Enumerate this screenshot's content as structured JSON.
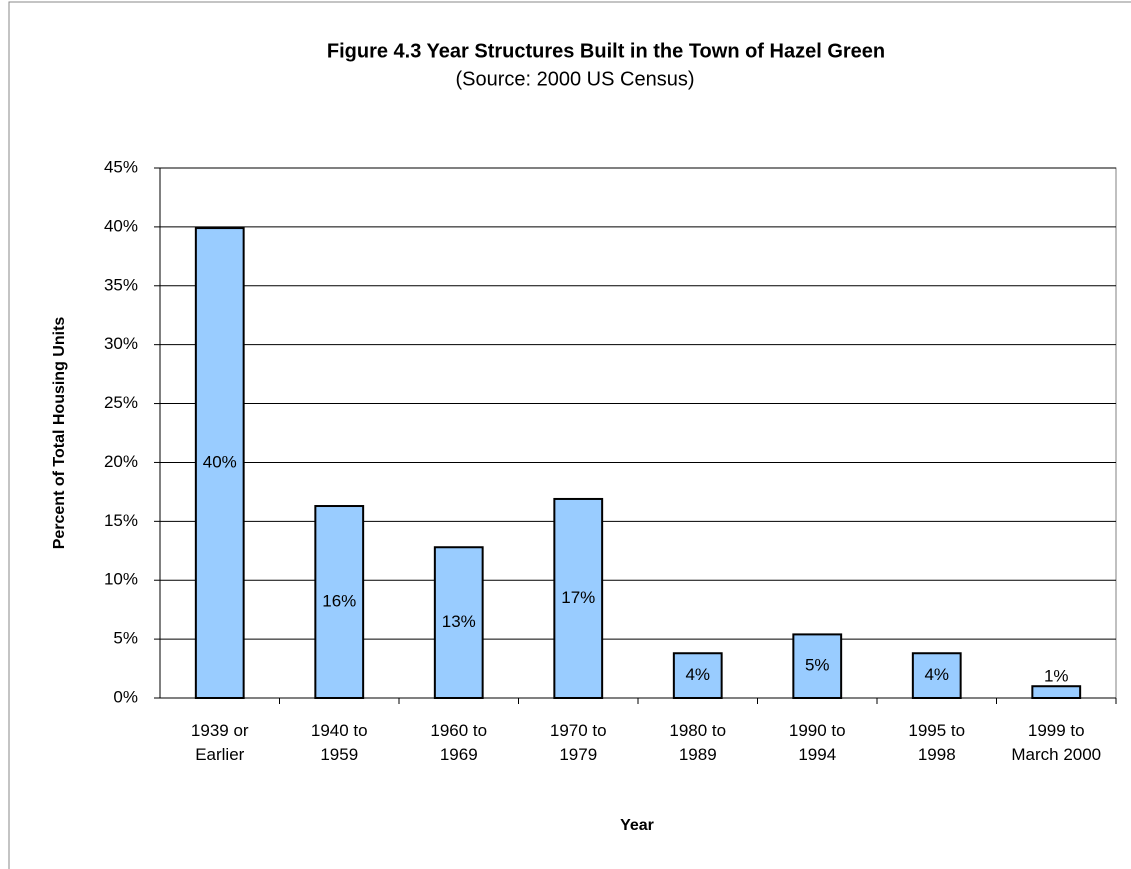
{
  "chart_data": {
    "type": "bar",
    "title": "Figure 4.3 Year Structures Built in the Town of Hazel Green",
    "subtitle": "(Source: 2000 US Census)",
    "x_label": "Year",
    "y_label": "Percent of Total Housing Units",
    "categories": [
      "1939 or\nEarlier",
      "1940 to\n1959",
      "1960 to\n1969",
      "1970 to\n1979",
      "1980 to\n1989",
      "1990 to\n1994",
      "1995 to\n1998",
      "1999 to\nMarch 2000"
    ],
    "values": [
      39.9,
      16.3,
      12.8,
      16.9,
      3.8,
      5.4,
      3.8,
      1.0
    ],
    "value_labels": [
      "40%",
      "16%",
      "13%",
      "17%",
      "4%",
      "5%",
      "4%",
      "1%"
    ],
    "color": "#99ccff",
    "ylim": [
      0,
      45
    ],
    "yticks": [
      {
        "value": 0,
        "label": "0%"
      },
      {
        "value": 5,
        "label": "5%"
      },
      {
        "value": 10,
        "label": "10%"
      },
      {
        "value": 15,
        "label": "15%"
      },
      {
        "value": 20,
        "label": "20%"
      },
      {
        "value": 25,
        "label": "25%"
      },
      {
        "value": 30,
        "label": "30%"
      },
      {
        "value": 35,
        "label": "35%"
      },
      {
        "value": 40,
        "label": "40%"
      },
      {
        "value": 45,
        "label": "45%"
      }
    ],
    "grid": true
  }
}
